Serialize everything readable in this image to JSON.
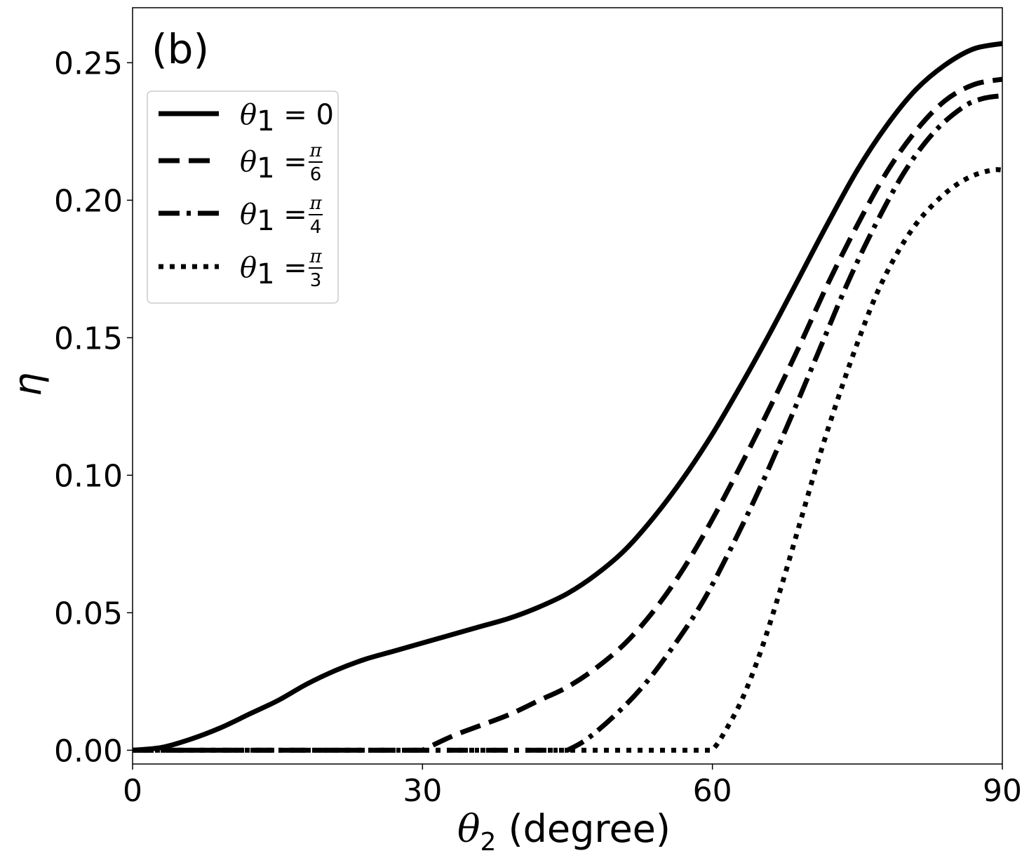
{
  "chart_data": {
    "type": "line",
    "panel_label": "(b)",
    "xlabel": "θ2 (degree)",
    "ylabel": "η",
    "xlim": [
      0,
      90
    ],
    "ylim": [
      -0.005,
      0.27
    ],
    "x_ticks": [
      0,
      30,
      60,
      90
    ],
    "y_ticks": [
      0.0,
      0.05,
      0.1,
      0.15,
      0.2,
      0.25
    ],
    "grid": false,
    "legend_position": "upper-left",
    "series": [
      {
        "name": "θ1 = 0",
        "style": "solid",
        "x": [
          0,
          3,
          6,
          9,
          12,
          15,
          18,
          21,
          24,
          27,
          30,
          33,
          36,
          39,
          42,
          45,
          48,
          51,
          54,
          57,
          60,
          63,
          66,
          69,
          72,
          75,
          78,
          81,
          84,
          87,
          90
        ],
        "y": [
          0.0,
          0.001,
          0.004,
          0.008,
          0.013,
          0.018,
          0.024,
          0.029,
          0.033,
          0.036,
          0.039,
          0.042,
          0.045,
          0.048,
          0.052,
          0.057,
          0.064,
          0.073,
          0.085,
          0.099,
          0.115,
          0.133,
          0.152,
          0.172,
          0.192,
          0.211,
          0.227,
          0.24,
          0.249,
          0.255,
          0.257
        ]
      },
      {
        "name": "θ1 = π/6",
        "style": "dashed",
        "x": [
          0,
          10,
          20,
          30,
          33,
          36,
          39,
          42,
          45,
          48,
          51,
          54,
          57,
          60,
          63,
          66,
          69,
          72,
          75,
          78,
          81,
          84,
          87,
          90
        ],
        "y": [
          0.0,
          0.0,
          0.0,
          0.0,
          0.005,
          0.009,
          0.013,
          0.018,
          0.023,
          0.03,
          0.039,
          0.051,
          0.066,
          0.084,
          0.104,
          0.125,
          0.147,
          0.17,
          0.191,
          0.21,
          0.225,
          0.236,
          0.242,
          0.244
        ]
      },
      {
        "name": "θ1 = π/4",
        "style": "dashdot",
        "x": [
          0,
          15,
          30,
          45,
          47,
          50,
          53,
          56,
          59,
          62,
          65,
          68,
          71,
          74,
          77,
          80,
          83,
          86,
          88,
          90
        ],
        "y": [
          0.0,
          0.0,
          0.0,
          0.0,
          0.004,
          0.013,
          0.024,
          0.038,
          0.054,
          0.074,
          0.096,
          0.12,
          0.145,
          0.17,
          0.192,
          0.211,
          0.225,
          0.234,
          0.237,
          0.238
        ]
      },
      {
        "name": "θ1 = π/3",
        "style": "dotted",
        "x": [
          0,
          20,
          40,
          60,
          61,
          63,
          65,
          67,
          69,
          71,
          73,
          75,
          77,
          79,
          81,
          83,
          85,
          87,
          89,
          90
        ],
        "y": [
          0.0,
          0.0,
          0.0,
          0.0,
          0.005,
          0.018,
          0.036,
          0.058,
          0.082,
          0.106,
          0.128,
          0.148,
          0.166,
          0.18,
          0.191,
          0.199,
          0.205,
          0.209,
          0.211,
          0.211
        ]
      }
    ]
  },
  "legend": {
    "entries": [
      {
        "prefix": "θ",
        "sub": "1",
        "eq": " = ",
        "value": "0"
      },
      {
        "prefix": "θ",
        "sub": "1",
        "eq": " = ",
        "num": "π",
        "den": "6"
      },
      {
        "prefix": "θ",
        "sub": "1",
        "eq": " = ",
        "num": "π",
        "den": "4"
      },
      {
        "prefix": "θ",
        "sub": "1",
        "eq": " = ",
        "num": "π",
        "den": "3"
      }
    ]
  },
  "axis_text": {
    "x_theta": "θ",
    "x_sub": "2",
    "x_rest": " (degree)",
    "y_symbol": "η"
  }
}
